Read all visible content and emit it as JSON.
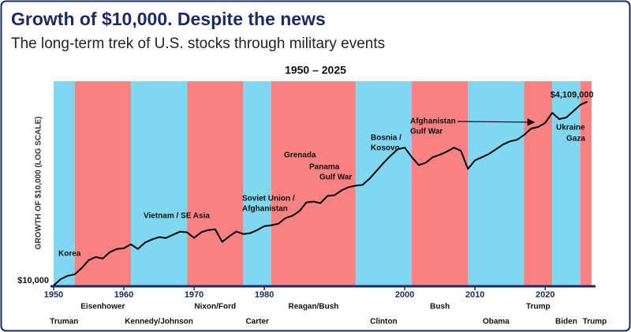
{
  "chart_data": {
    "type": "line",
    "title": "Growth of $10,000. Despite the news",
    "subtitle": "The long-term trek of U.S. stocks through military events",
    "period": "1950 – 2025",
    "y_label": "GROWTH OF $10,000 (LOG SCALE)",
    "log_scale": true,
    "xlim": [
      1950,
      2026.6
    ],
    "xticks": [
      1950,
      1960,
      1970,
      1980,
      2000,
      2010,
      2020
    ],
    "ylim": [
      10000,
      8000000
    ],
    "yticks": [
      {
        "value": 10000,
        "label": "$10,000"
      }
    ],
    "color": "#000000",
    "x": [
      1950,
      1951,
      1952,
      1953,
      1954,
      1955,
      1956,
      1957,
      1958,
      1959,
      1960,
      1961,
      1962,
      1963,
      1964,
      1965,
      1966,
      1967,
      1968,
      1969,
      1970,
      1971,
      1972,
      1973,
      1974,
      1975,
      1976,
      1977,
      1978,
      1979,
      1980,
      1981,
      1982,
      1983,
      1984,
      1985,
      1986,
      1987,
      1988,
      1989,
      1990,
      1991,
      1992,
      1993,
      1994,
      1995,
      1996,
      1997,
      1998,
      1999,
      2000,
      2001,
      2002,
      2003,
      2004,
      2005,
      2006,
      2007,
      2008,
      2009,
      2010,
      2011,
      2012,
      2013,
      2014,
      2015,
      2016,
      2017,
      2018,
      2019,
      2020,
      2021,
      2022,
      2023,
      2024,
      2025,
      2026
    ],
    "values": [
      10000,
      12300,
      13700,
      14400,
      17700,
      22900,
      25400,
      24100,
      29700,
      33000,
      33800,
      38500,
      33000,
      40600,
      45000,
      48600,
      47400,
      52600,
      58300,
      56900,
      47400,
      56900,
      61400,
      63000,
      41600,
      49900,
      58300,
      54000,
      55400,
      61400,
      69900,
      71800,
      75500,
      90600,
      97900,
      114000,
      152000,
      156000,
      148000,
      187000,
      192000,
      225000,
      249000,
      262000,
      269000,
      331000,
      429000,
      556000,
      703000,
      865000,
      910000,
      667000,
      515000,
      556000,
      667000,
      721000,
      800000,
      910000,
      821000,
      452000,
      601000,
      667000,
      740000,
      865000,
      1010000,
      1120000,
      1180000,
      1380000,
      1700000,
      1790000,
      2040000,
      2850000,
      2320000,
      2440000,
      3000000,
      3700000,
      4109000
    ],
    "value_labels": [
      null,
      null,
      null,
      null,
      null,
      null,
      null,
      null,
      null,
      null,
      null,
      null,
      null,
      null,
      null,
      null,
      null,
      null,
      null,
      null,
      null,
      null,
      null,
      null,
      null,
      null,
      null,
      null,
      null,
      null,
      null,
      null,
      null,
      null,
      null,
      null,
      null,
      null,
      null,
      null,
      null,
      null,
      null,
      null,
      null,
      null,
      null,
      null,
      null,
      null,
      null,
      null,
      null,
      null,
      null,
      null,
      null,
      null,
      null,
      null,
      null,
      null,
      null,
      null,
      null,
      null,
      null,
      null,
      null,
      null,
      null,
      null,
      null,
      null,
      null,
      null,
      "$4,109,000"
    ],
    "bands": [
      {
        "label": "Truman",
        "start": 1950,
        "end": 1953,
        "color": "#7fd7f0"
      },
      {
        "label": "Eisenhower",
        "start": 1953,
        "end": 1961,
        "color": "#f88181"
      },
      {
        "label": "Kennedy/Johnson",
        "start": 1961,
        "end": 1969,
        "color": "#7fd7f0"
      },
      {
        "label": "Nixon/Ford",
        "start": 1969,
        "end": 1977,
        "color": "#f88181"
      },
      {
        "label": "Carter",
        "start": 1977,
        "end": 1981,
        "color": "#7fd7f0"
      },
      {
        "label": "Reagan/Bush",
        "start": 1981,
        "end": 1993,
        "color": "#f88181"
      },
      {
        "label": "Clinton",
        "start": 1993,
        "end": 2001,
        "color": "#7fd7f0"
      },
      {
        "label": "Bush",
        "start": 2001,
        "end": 2009,
        "color": "#f88181"
      },
      {
        "label": "Obama",
        "start": 2009,
        "end": 2017,
        "color": "#7fd7f0"
      },
      {
        "label": "Trump",
        "start": 2017,
        "end": 2021,
        "color": "#f88181"
      },
      {
        "label": "Biden",
        "start": 2021,
        "end": 2025,
        "color": "#7fd7f0"
      },
      {
        "label": "Trump",
        "start": 2025,
        "end": 2026.6,
        "color": "#f88181"
      }
    ],
    "events": [
      {
        "lines": [
          "Korea"
        ]
      },
      {
        "lines": [
          "Vietnam / SE Asia"
        ]
      },
      {
        "lines": [
          "Soviet Union /",
          "Afghanistan"
        ]
      },
      {
        "lines": [
          "Grenada"
        ]
      },
      {
        "lines": [
          "Panama"
        ]
      },
      {
        "lines": [
          "Gulf War"
        ]
      },
      {
        "lines": [
          "Bosnia /",
          "Kosovo"
        ]
      },
      {
        "lines": [
          "Afghanistan",
          "Gulf War"
        ]
      },
      {
        "lines": [
          "Ukraine"
        ]
      },
      {
        "lines": [
          "Gaza"
        ]
      }
    ]
  }
}
